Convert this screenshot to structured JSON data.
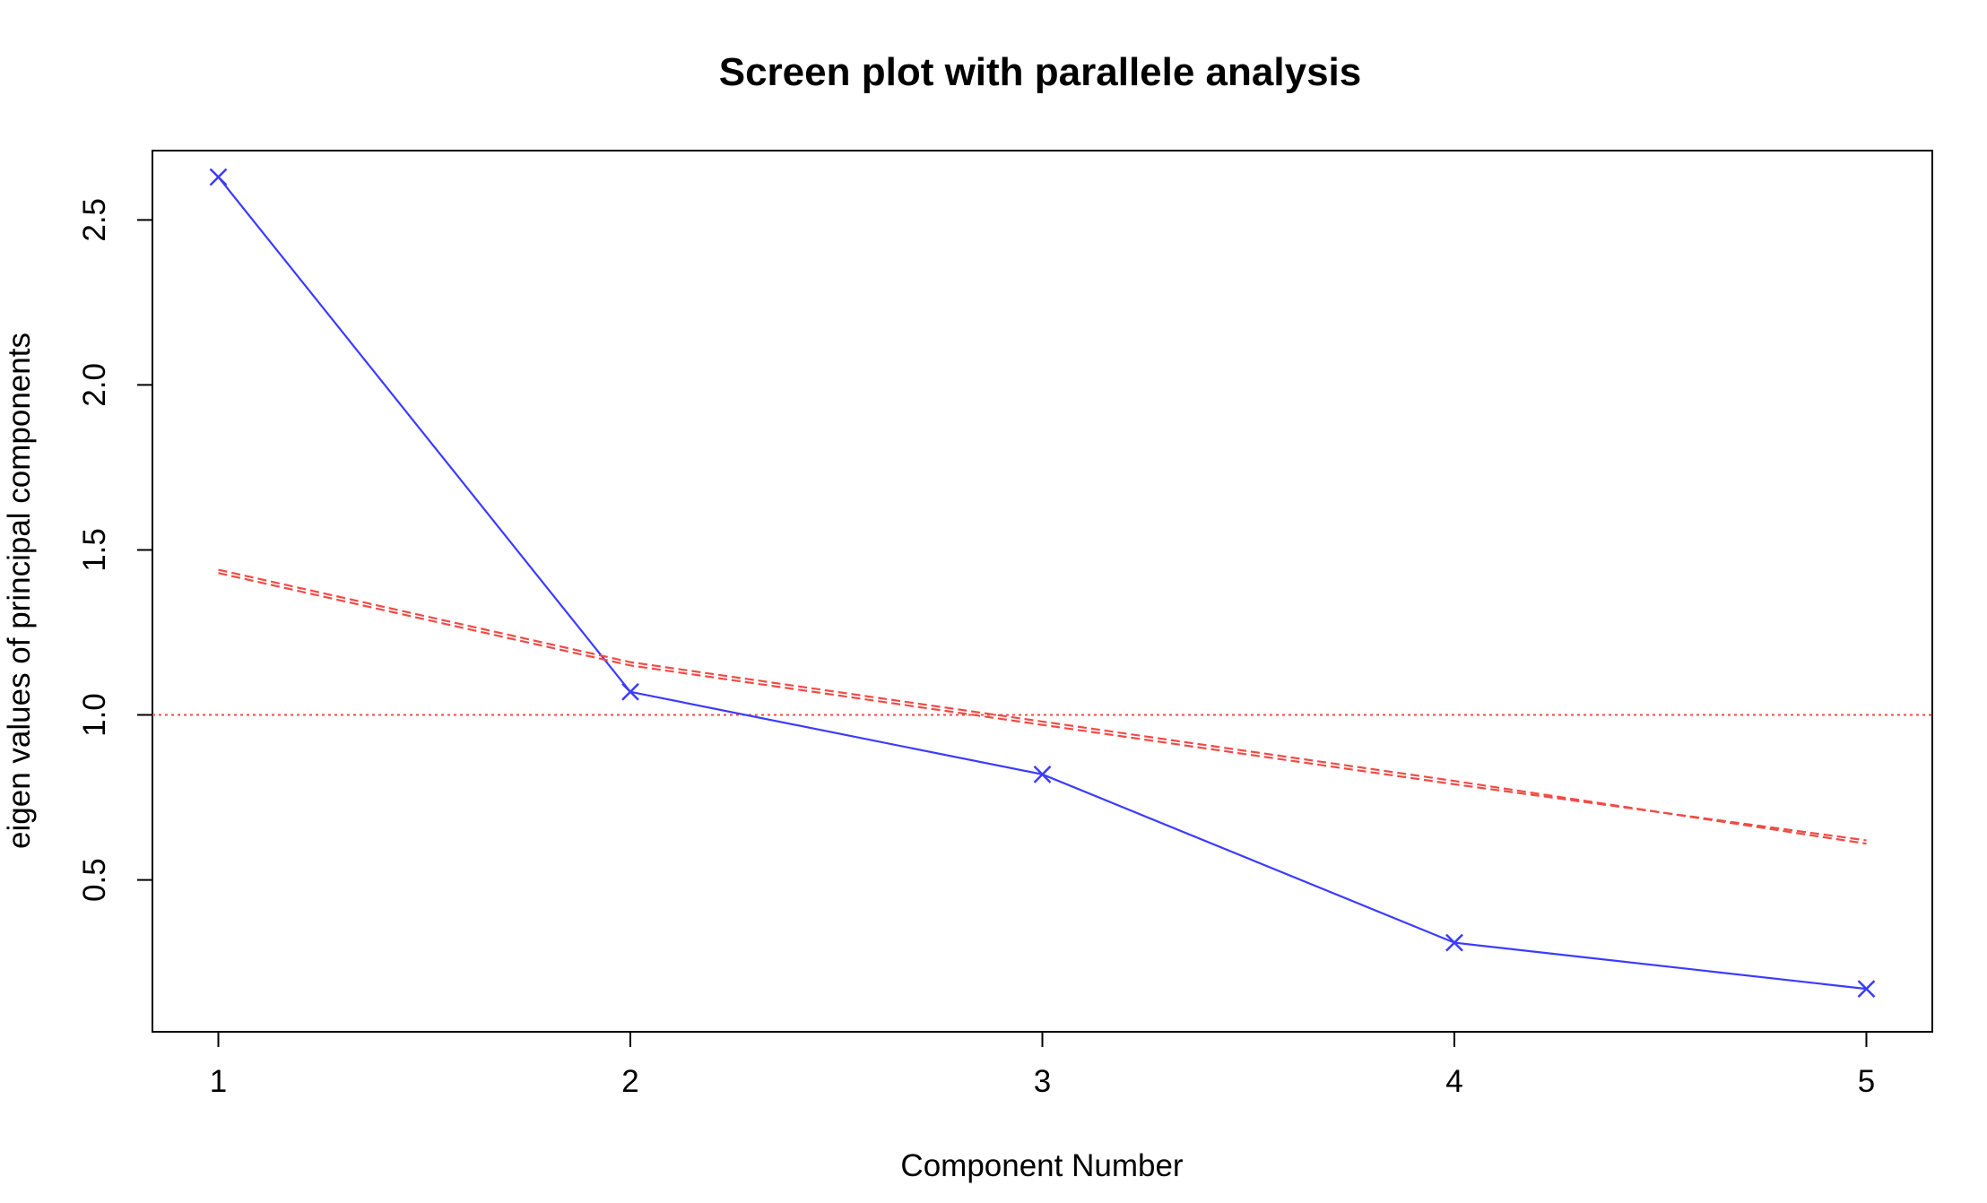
{
  "chart_data": {
    "type": "line",
    "title": "Screen plot with parallele analysis",
    "xlabel": "Component Number",
    "ylabel": "eigen values of principal components",
    "xlim": [
      0.84,
      5.16
    ],
    "ylim": [
      0.04,
      2.71
    ],
    "x_ticks": [
      "1",
      "2",
      "3",
      "4",
      "5"
    ],
    "y_ticks": [
      "0.5",
      "1.0",
      "1.5",
      "2.0",
      "2.5"
    ],
    "grid": false,
    "legend": "none",
    "x": [
      1,
      2,
      3,
      4,
      5
    ],
    "series": [
      {
        "values": [
          2.63,
          1.07,
          0.82,
          0.31,
          0.17
        ],
        "color": "#3b3bff",
        "line": "solid",
        "marker": "cross"
      },
      {
        "values": [
          1.44,
          1.16,
          0.98,
          0.8,
          0.61
        ],
        "color": "#ef4b46",
        "line": "dashed",
        "marker": "none"
      },
      {
        "values": [
          1.43,
          1.15,
          0.97,
          0.79,
          0.62
        ],
        "color": "#ef4b46",
        "line": "dashed",
        "marker": "none"
      }
    ],
    "reference_line": {
      "y": 1.0,
      "color": "#ef4b46",
      "line": "dotted"
    }
  }
}
